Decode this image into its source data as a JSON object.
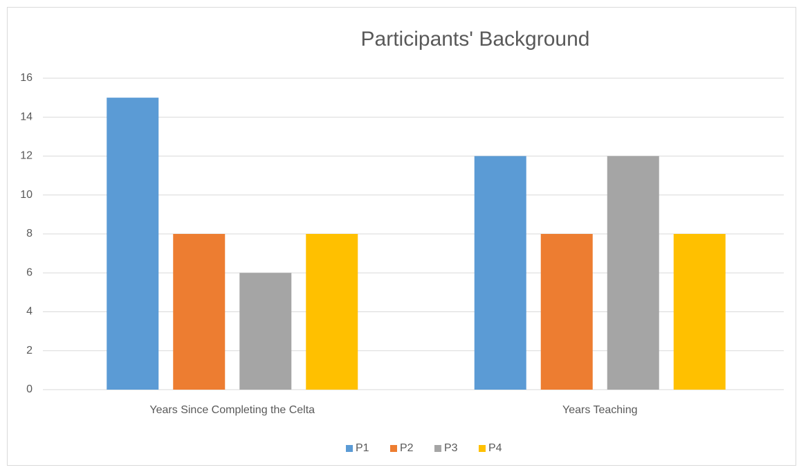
{
  "chart_data": {
    "type": "bar",
    "title": "Participants' Background",
    "categories": [
      "Years Since Completing the Celta",
      "Years Teaching"
    ],
    "series": [
      {
        "name": "P1",
        "color": "#5b9bd5",
        "values": [
          15,
          12
        ]
      },
      {
        "name": "P2",
        "color": "#ed7d31",
        "values": [
          8,
          8
        ]
      },
      {
        "name": "P3",
        "color": "#a5a5a5",
        "values": [
          6,
          12
        ]
      },
      {
        "name": "P4",
        "color": "#ffc000",
        "values": [
          8,
          8
        ]
      }
    ],
    "ylim": [
      0,
      16
    ],
    "yticks": [
      0,
      2,
      4,
      6,
      8,
      10,
      12,
      14,
      16
    ],
    "grid": true,
    "legend": "bottom"
  }
}
